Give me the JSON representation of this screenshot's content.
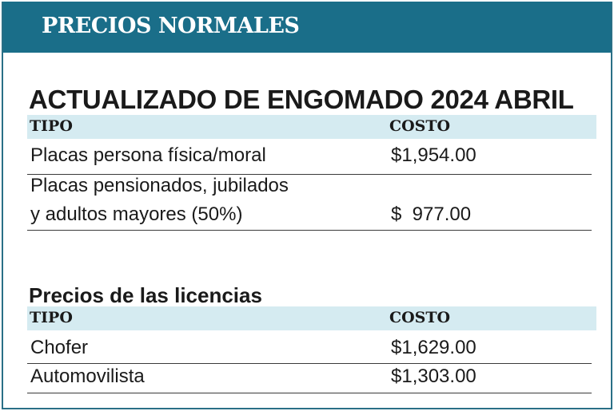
{
  "banner": {
    "title": "PRECIOS NORMALES"
  },
  "engomado": {
    "title": "ACTUALIZADO DE ENGOMADO 2024 ABRIL",
    "headers": {
      "tipo": "TIPO",
      "costo": "COSTO"
    },
    "rows": [
      {
        "tipo": "Placas persona física/moral",
        "costo": "$1,954.00"
      },
      {
        "tipo_line1": "Placas pensionados, jubilados",
        "tipo_line2": "y adultos mayores (50%)",
        "costo": "$  977.00"
      }
    ]
  },
  "licencias": {
    "title": "Precios de las licencias",
    "headers": {
      "tipo": "TIPO",
      "costo": "COSTO"
    },
    "rows": [
      {
        "tipo": "Chofer",
        "costo": "$1,629.00"
      },
      {
        "tipo": "Automovilista",
        "costo": "$1,303.00"
      }
    ]
  },
  "colors": {
    "banner": "#1a6e89",
    "header_row": "#d5ebf1",
    "text": "#1a1a1a"
  }
}
